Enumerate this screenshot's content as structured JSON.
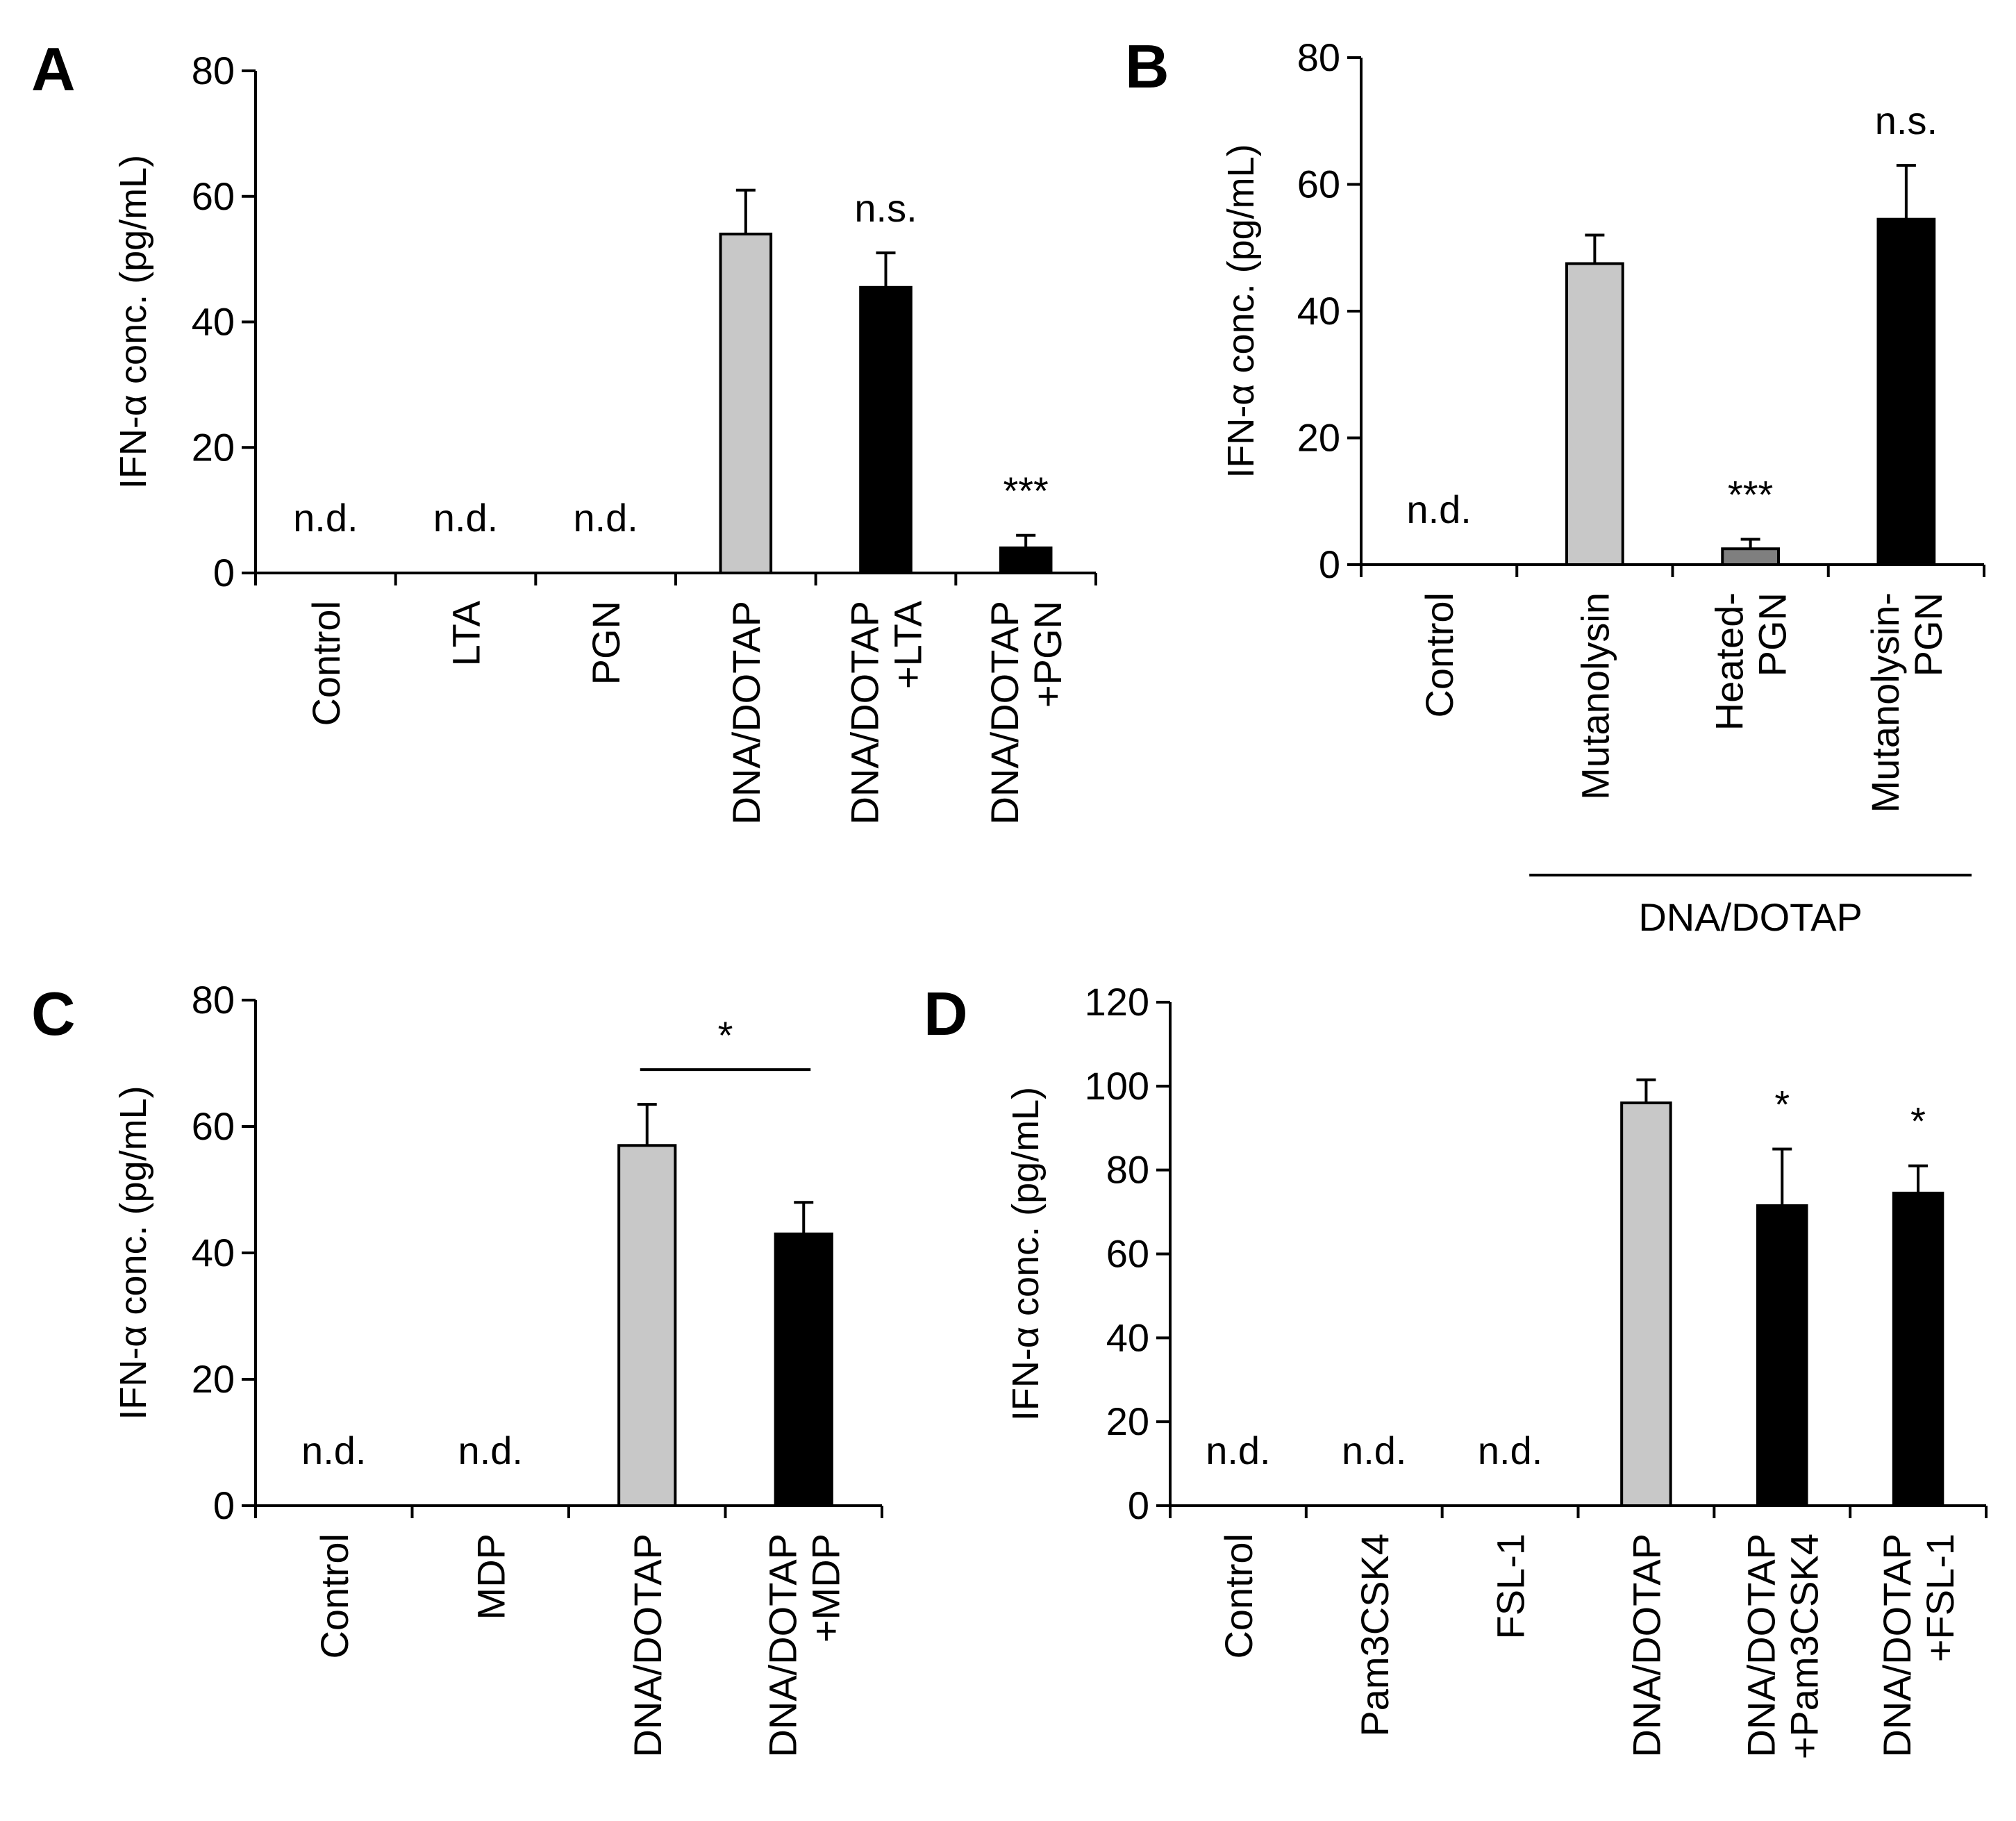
{
  "chart_data": [
    {
      "panel": "A",
      "type": "bar",
      "ylabel": "IFN-α conc. (pg/mL)",
      "ylim": [
        0,
        80
      ],
      "yticks": [
        0,
        20,
        40,
        60,
        80
      ],
      "categories": [
        [
          "Control"
        ],
        [
          "LTA"
        ],
        [
          "PGN"
        ],
        [
          "DNA/DOTAP"
        ],
        [
          "DNA/DOTAP",
          "+LTA"
        ],
        [
          "DNA/DOTAP",
          "+PGN"
        ]
      ],
      "values": [
        0,
        0,
        0,
        54,
        45.5,
        4
      ],
      "errors": [
        0,
        0,
        0,
        7,
        5.5,
        2
      ],
      "fills": [
        "none",
        "none",
        "none",
        "gray",
        "black",
        "black"
      ],
      "annotations": [
        "n.d.",
        "n.d.",
        "n.d.",
        "",
        "n.s.",
        "***"
      ],
      "group_label": null,
      "bracket": null
    },
    {
      "panel": "B",
      "type": "bar",
      "ylabel": "IFN-α conc. (pg/mL)",
      "ylim": [
        0,
        80
      ],
      "yticks": [
        0,
        20,
        40,
        60,
        80
      ],
      "categories": [
        [
          "Control"
        ],
        [
          "Mutanolysin"
        ],
        [
          "Heated-",
          "PGN"
        ],
        [
          "Mutanolysin-",
          "PGN"
        ]
      ],
      "values": [
        0,
        47.5,
        2.5,
        54.5
      ],
      "errors": [
        0,
        4.5,
        1.5,
        8.5
      ],
      "fills": [
        "none",
        "gray",
        "darkgray",
        "black"
      ],
      "annotations": [
        "n.d.",
        "",
        "***",
        "n.s."
      ],
      "group_label": {
        "text": "DNA/DOTAP",
        "from": 1,
        "to": 3
      },
      "bracket": null
    },
    {
      "panel": "C",
      "type": "bar",
      "ylabel": "IFN-α conc. (pg/mL)",
      "ylim": [
        0,
        80
      ],
      "yticks": [
        0,
        20,
        40,
        60,
        80
      ],
      "categories": [
        [
          "Control"
        ],
        [
          "MDP"
        ],
        [
          "DNA/DOTAP"
        ],
        [
          "DNA/DOTAP",
          "+MDP"
        ]
      ],
      "values": [
        0,
        0,
        57,
        43
      ],
      "errors": [
        0,
        0,
        6.5,
        5
      ],
      "fills": [
        "none",
        "none",
        "gray",
        "black"
      ],
      "annotations": [
        "n.d.",
        "n.d.",
        "",
        ""
      ],
      "group_label": null,
      "bracket": {
        "from": 2,
        "to": 3,
        "label": "*",
        "y": 69
      }
    },
    {
      "panel": "D",
      "type": "bar",
      "ylabel": "IFN-α conc. (pg/mL)",
      "ylim": [
        0,
        120
      ],
      "yticks": [
        0,
        20,
        40,
        60,
        80,
        100,
        120
      ],
      "categories": [
        [
          "Control"
        ],
        [
          "Pam3CSK4"
        ],
        [
          "FSL-1"
        ],
        [
          "DNA/DOTAP"
        ],
        [
          "DNA/DOTAP",
          "+Pam3CSK4"
        ],
        [
          "DNA/DOTAP",
          "+FSL-1"
        ]
      ],
      "values": [
        0,
        0,
        0,
        96,
        71.5,
        74.5
      ],
      "errors": [
        0,
        0,
        0,
        5.5,
        13.5,
        6.5
      ],
      "fills": [
        "none",
        "none",
        "none",
        "gray",
        "black",
        "black"
      ],
      "annotations": [
        "n.d.",
        "n.d.",
        "n.d.",
        "",
        "*",
        "*"
      ],
      "group_label": null,
      "bracket": null
    }
  ],
  "colors": {
    "gray": "#c8c8c8",
    "darkgray": "#7f7f7f",
    "black": "#000000",
    "axis": "#000000"
  }
}
